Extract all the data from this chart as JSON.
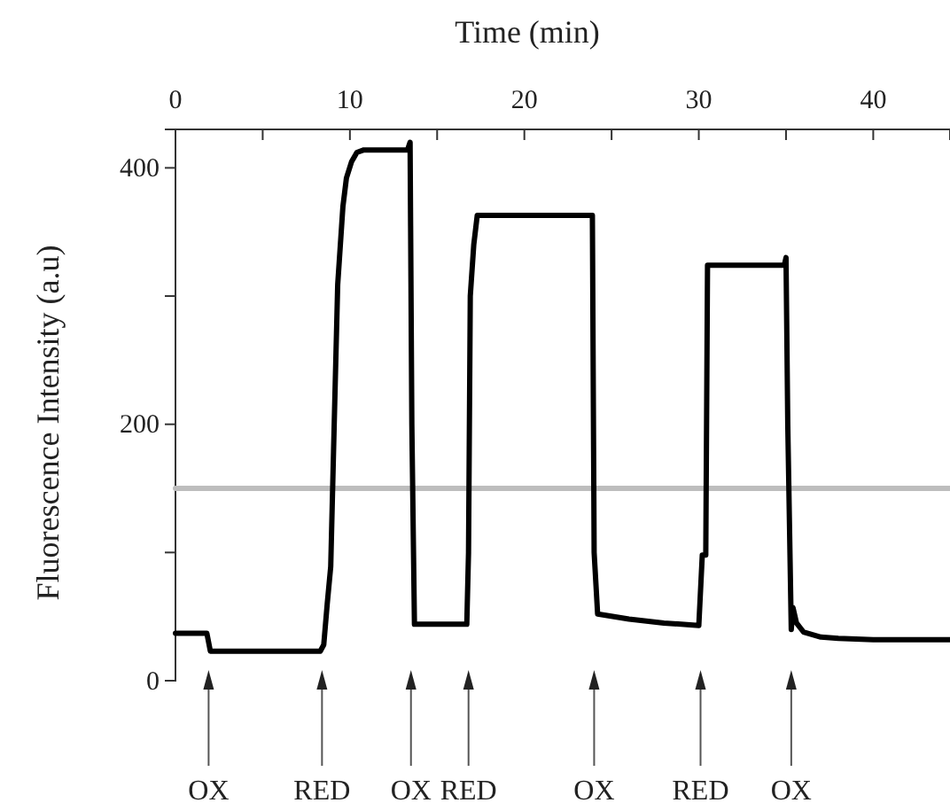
{
  "chart_data": {
    "type": "line",
    "xlabel": "Time (min)",
    "ylabel": "Fluorescence Intensity (a.u)",
    "xlim": [
      0,
      44.4
    ],
    "ylim": [
      0,
      430
    ],
    "xticks": [
      0,
      {
        "value": 5,
        "label": null
      },
      10,
      {
        "value": 15,
        "label": null
      },
      20,
      {
        "value": 25,
        "label": null
      },
      30,
      {
        "value": 35,
        "label": null
      },
      40
    ],
    "yticks": [
      0,
      {
        "value": 100,
        "label": null
      },
      200,
      {
        "value": 300,
        "label": null
      },
      400
    ],
    "grid": false,
    "marker": "none",
    "line_style": "solid",
    "series": [
      {
        "color": "#bdbdbd",
        "x": [
          0,
          44.4
        ],
        "values": [
          150,
          150
        ]
      },
      {
        "color": "#000000",
        "x": [
          0,
          1.8,
          2.0,
          2.2,
          8.3,
          8.5,
          8.7,
          8.9,
          9.1,
          9.3,
          9.6,
          9.8,
          10.1,
          10.4,
          10.8,
          13.3,
          13.45,
          13.55,
          13.7,
          16.7,
          16.8,
          16.9,
          17.1,
          17.3,
          23.8,
          23.9,
          24.0,
          24.2,
          26,
          28,
          30.0,
          30.2,
          30.4,
          30.5,
          30.7,
          34.9,
          35.0,
          35.1,
          35.3,
          35.4,
          35.6,
          36,
          37,
          38,
          40,
          42,
          44.4
        ],
        "values": [
          37,
          37,
          23,
          23,
          23,
          28,
          60,
          89,
          200,
          309,
          370,
          392,
          405,
          412,
          414,
          414,
          420,
          200,
          44,
          44,
          100,
          300,
          340,
          363,
          363,
          363,
          100,
          52,
          48,
          45,
          43,
          98,
          98,
          324,
          324,
          324,
          330,
          200,
          40,
          57,
          45,
          38,
          34,
          33,
          32,
          32,
          32
        ]
      }
    ],
    "annotations": [
      {
        "text": "OX",
        "x": 1.9
      },
      {
        "text": "RED",
        "x": 8.4
      },
      {
        "text": "OX",
        "x": 13.5
      },
      {
        "text": "RED",
        "x": 16.8
      },
      {
        "text": "OX",
        "x": 24.0
      },
      {
        "text": "RED",
        "x": 30.1
      },
      {
        "text": "OX",
        "x": 35.3
      }
    ]
  }
}
